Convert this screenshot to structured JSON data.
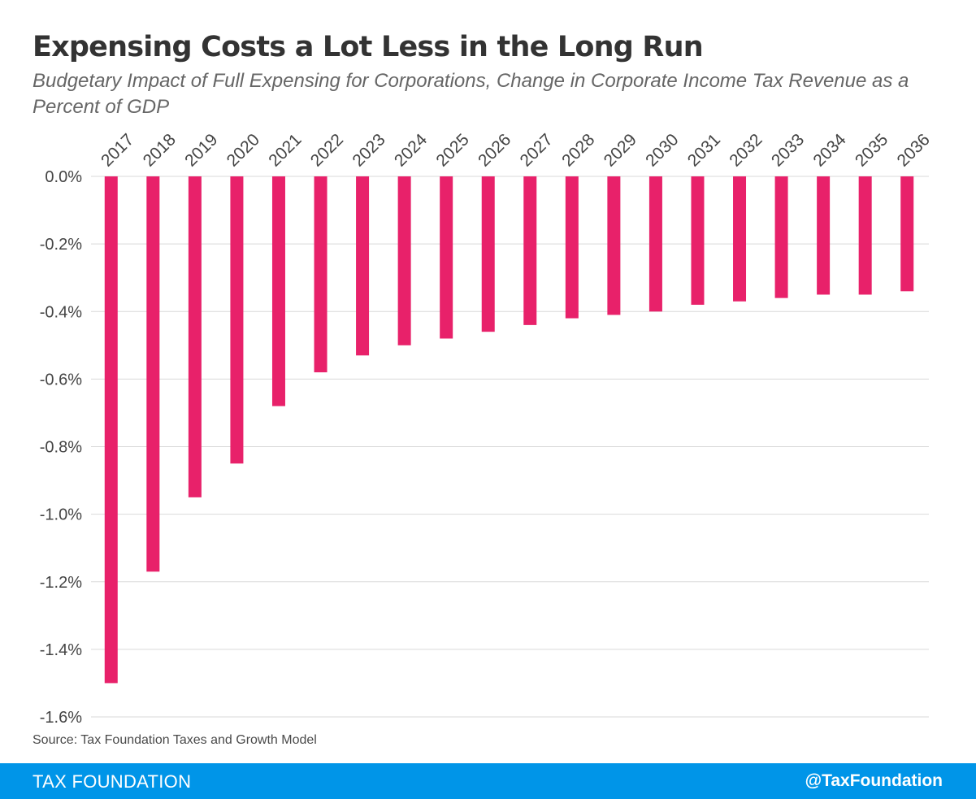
{
  "header": {
    "title": "Expensing Costs a Lot Less in the Long Run",
    "subtitle": "Budgetary Impact of Full Expensing for Corporations, Change in Corporate Income Tax Revenue as a Percent of GDP"
  },
  "source": "Source: Tax Foundation Taxes and Growth Model",
  "footer": {
    "brand": "TAX FOUNDATION",
    "handle": "@TaxFoundation",
    "background_color": "#0095e8"
  },
  "chart_data": {
    "type": "bar",
    "title": "Expensing Costs a Lot Less in the Long Run",
    "subtitle": "Budgetary Impact of Full Expensing for Corporations, Change in Corporate Income Tax Revenue as a Percent of GDP",
    "categories": [
      "2017",
      "2018",
      "2019",
      "2020",
      "2021",
      "2022",
      "2023",
      "2024",
      "2025",
      "2026",
      "2027",
      "2028",
      "2029",
      "2030",
      "2031",
      "2032",
      "2033",
      "2034",
      "2035",
      "2036"
    ],
    "values": [
      -1.5,
      -1.17,
      -0.95,
      -0.85,
      -0.68,
      -0.58,
      -0.53,
      -0.5,
      -0.48,
      -0.46,
      -0.44,
      -0.42,
      -0.41,
      -0.4,
      -0.38,
      -0.37,
      -0.36,
      -0.35,
      -0.35,
      -0.34
    ],
    "unit": "%",
    "ylim": [
      -1.6,
      0.0
    ],
    "yticks": [
      "0.0%",
      "-0.2%",
      "-0.4%",
      "-0.6%",
      "-0.8%",
      "-1.0%",
      "-1.2%",
      "-1.4%",
      "-1.6%"
    ],
    "grid": true,
    "category_axis_position": "top",
    "bar_color": "#e8216a",
    "grid_color": "#d9d9d9"
  }
}
